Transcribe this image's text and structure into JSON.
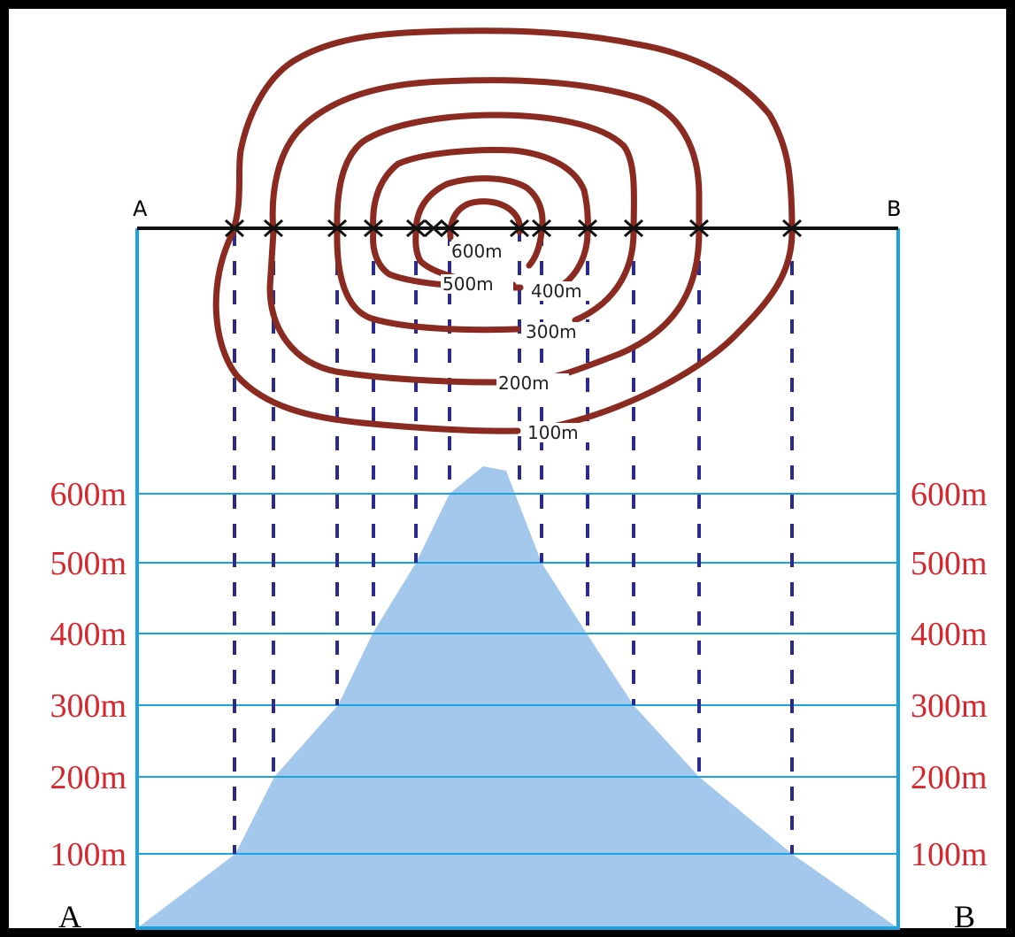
{
  "colors": {
    "contour": "#8b2a21",
    "section_line": "#111111",
    "frame": "#1aa3e0",
    "grid": "#1aa3e0",
    "guide": "#2a2a8f",
    "profile_fill": "#a4c8ec",
    "elevation_label": "#d8262e"
  },
  "section_line": {
    "start_label": "A",
    "end_label": "B"
  },
  "contour_labels": [
    "600m",
    "500m",
    "400m",
    "300m",
    "200m",
    "100m"
  ],
  "elevation_axis": {
    "left_labels": [
      "600m",
      "500m",
      "400m",
      "300m",
      "200m",
      "100m"
    ],
    "right_labels": [
      "600m",
      "500m",
      "400m",
      "300m",
      "200m",
      "100m"
    ]
  },
  "profile": {
    "start_label": "A",
    "end_label": "B"
  }
}
